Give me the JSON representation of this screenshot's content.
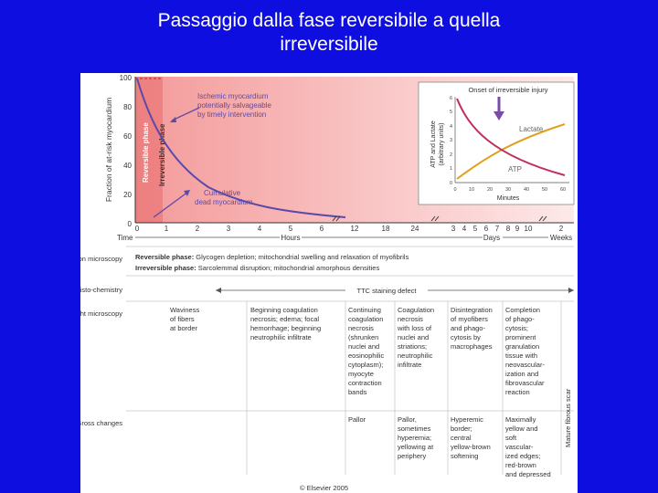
{
  "slide": {
    "title_line1": "Passaggio dalla fase reversibile a quella",
    "title_line2": "irreversibile",
    "colors": {
      "background": "#0e0ee0",
      "title": "#ffffff"
    }
  },
  "figure": {
    "y_axis_label": "Fraction of at-risk myocardium",
    "y_ticks": [
      "100",
      "80",
      "60",
      "40",
      "20",
      "0"
    ],
    "reversible_label": "Reversible phase",
    "irreversible_label": "Irreversible phase",
    "annotation_ischemic": [
      "Ischemic myocardium",
      "potentially salvageable",
      "by timely intervention"
    ],
    "annotation_dead": [
      "Cumulative",
      "dead myocardium"
    ],
    "time_label": "Time",
    "hours_label": "Hours",
    "days_label": "Days",
    "weeks_label": "Weeks",
    "hour_ticks": [
      "0",
      "1",
      "2",
      "3",
      "4",
      "5",
      "6",
      "12",
      "18",
      "24"
    ],
    "day_ticks": [
      "3",
      "4",
      "5",
      "6",
      "7",
      "8",
      "9",
      "10"
    ],
    "week_ticks": [
      "2"
    ],
    "inset": {
      "title": "Onset of irreversible injury",
      "y_label": [
        "ATP and Lactate",
        "(arbitrary units)"
      ],
      "x_label": "Minutes",
      "lactate_label": "Lactate",
      "atp_label": "ATP",
      "x_ticks": [
        "0",
        "10",
        "20",
        "30",
        "40",
        "50",
        "60"
      ],
      "y_ticks": [
        "6",
        "5",
        "4",
        "3",
        "2",
        "1",
        "0"
      ]
    },
    "rows": {
      "electron_microscopy": "Electron microscopy",
      "histochemistry": "Histo-chemistry",
      "light_microscopy": "Light microscopy",
      "gross_changes": "Gross changes",
      "reversible_bold": "Reversible phase:",
      "reversible_text": "Glycogen depletion; mitochondrial swelling and relaxation of myofibrils",
      "irreversible_bold": "Irreversible phase:",
      "irreversible_text": "Sarcolemmal disruption; mitochondrial amorphous densities",
      "ttc_label": "TTC staining defect",
      "mature_scar": "Mature fibrous scar"
    },
    "light_columns": [
      [
        "Waviness",
        "of fibers",
        "at border"
      ],
      [
        "Beginning coagulation",
        "necrosis; edema; focal",
        "hemorrhage; beginning",
        "neutrophilic infiltrate"
      ],
      [
        "Continuing",
        "coagulation",
        "necrosis",
        "(shrunken",
        "nuclei and",
        "eosinophilic",
        "cytoplasm);",
        "myocyte",
        "contraction",
        "bands"
      ],
      [
        "Coagulation",
        "necrosis",
        "with loss of",
        "nuclei and",
        "striations;",
        "neutrophilic",
        "infiltrate"
      ],
      [
        "Disintegration",
        "of myofibers",
        "and phago-",
        "cytosis by",
        "macrophages"
      ],
      [
        "Completion",
        "of phago-",
        "cytosis;",
        "prominent",
        "granulation",
        "tissue with",
        "neovascular-",
        "ization and",
        "fibrovascular",
        "reaction"
      ]
    ],
    "gross_columns": [
      [
        "Pallor"
      ],
      [
        "Pallor,",
        "sometimes",
        "hyperemia;",
        "yellowing at",
        "periphery"
      ],
      [
        "Hyperemic",
        "border;",
        "central",
        "yellow-brown",
        "softening"
      ],
      [
        "Maximally",
        "yellow and",
        "soft",
        "vascular-",
        "ized edges;",
        "red-brown",
        "and depressed"
      ]
    ],
    "copyright": "© Elsevier 2005"
  }
}
